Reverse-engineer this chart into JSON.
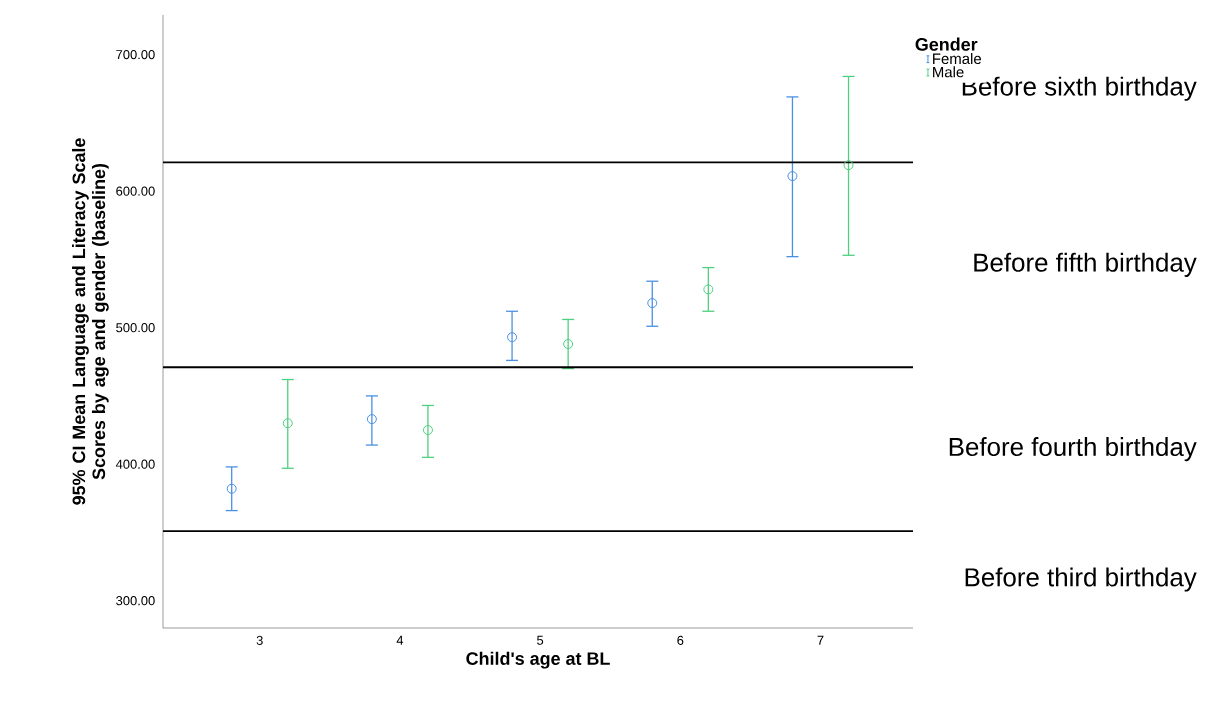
{
  "chart_data": {
    "type": "scatter",
    "xlabel": "Child's age at BL",
    "ylabel": "95% CI Mean Language and Literacy Scale Scores by age and gender (baseline)",
    "legend_title": "Gender",
    "legend": "top right",
    "marker": "circle",
    "grid": false,
    "xlim": [
      2.31,
      7.66
    ],
    "xticks": [
      3,
      4,
      5,
      6,
      7
    ],
    "ylim": [
      280,
      729
    ],
    "yticks": [
      {
        "value": 300,
        "label": "300.00"
      },
      {
        "value": 400,
        "label": "400.00"
      },
      {
        "value": 500,
        "label": "500.00"
      },
      {
        "value": 600,
        "label": "600.00"
      },
      {
        "value": 700,
        "label": "700.00"
      }
    ],
    "series": [
      {
        "name": "Female",
        "color": "#4a90e2",
        "x": [
          2.8,
          3.8,
          4.8,
          5.8,
          6.8
        ],
        "values": [
          382,
          433,
          493,
          518,
          611
        ],
        "errors": [
          [
            366,
            398
          ],
          [
            414,
            450
          ],
          [
            476,
            512
          ],
          [
            501,
            534
          ],
          [
            552,
            669
          ]
        ]
      },
      {
        "name": "Male",
        "color": "#4fcf7f",
        "x": [
          3.2,
          4.2,
          5.2,
          6.2,
          7.2
        ],
        "values": [
          430,
          425,
          488,
          528,
          619
        ],
        "errors": [
          [
            397,
            462
          ],
          [
            405,
            443
          ],
          [
            470,
            506
          ],
          [
            512,
            544
          ],
          [
            553,
            684
          ]
        ]
      }
    ],
    "ref_lines": [
      {
        "axis": "y",
        "value": 621,
        "color": "#000000"
      },
      {
        "axis": "y",
        "value": 471,
        "color": "#000000"
      },
      {
        "axis": "y",
        "value": 351,
        "color": "#000000"
      }
    ],
    "annotations": [
      "Before sixth birthday",
      "Before fifth birthday",
      "Before fourth birthday",
      "Before third birthday"
    ]
  }
}
